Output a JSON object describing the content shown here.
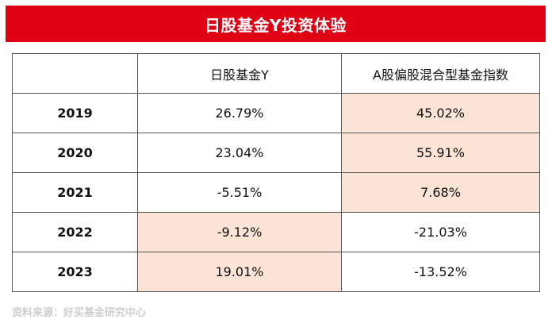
{
  "title": "日股基金Y投资体验",
  "table": {
    "headers": [
      "",
      "日股基金Y",
      "A股偏股混合型基金指数"
    ],
    "rows": [
      {
        "year": "2019",
        "fund": "26.79%",
        "index": "45.02%",
        "highlight": "index"
      },
      {
        "year": "2020",
        "fund": "23.04%",
        "index": "55.91%",
        "highlight": "index"
      },
      {
        "year": "2021",
        "fund": "-5.51%",
        "index": "7.68%",
        "highlight": "index"
      },
      {
        "year": "2022",
        "fund": "-9.12%",
        "index": "-21.03%",
        "highlight": "fund"
      },
      {
        "year": "2023",
        "fund": "19.01%",
        "index": "-13.52%",
        "highlight": "fund"
      }
    ]
  },
  "source": "资料来源：好买基金研究中心",
  "colors": {
    "title_bar": "#e00014",
    "highlight_cell": "#fbe4d5",
    "source_text": "#cfcfcf"
  }
}
